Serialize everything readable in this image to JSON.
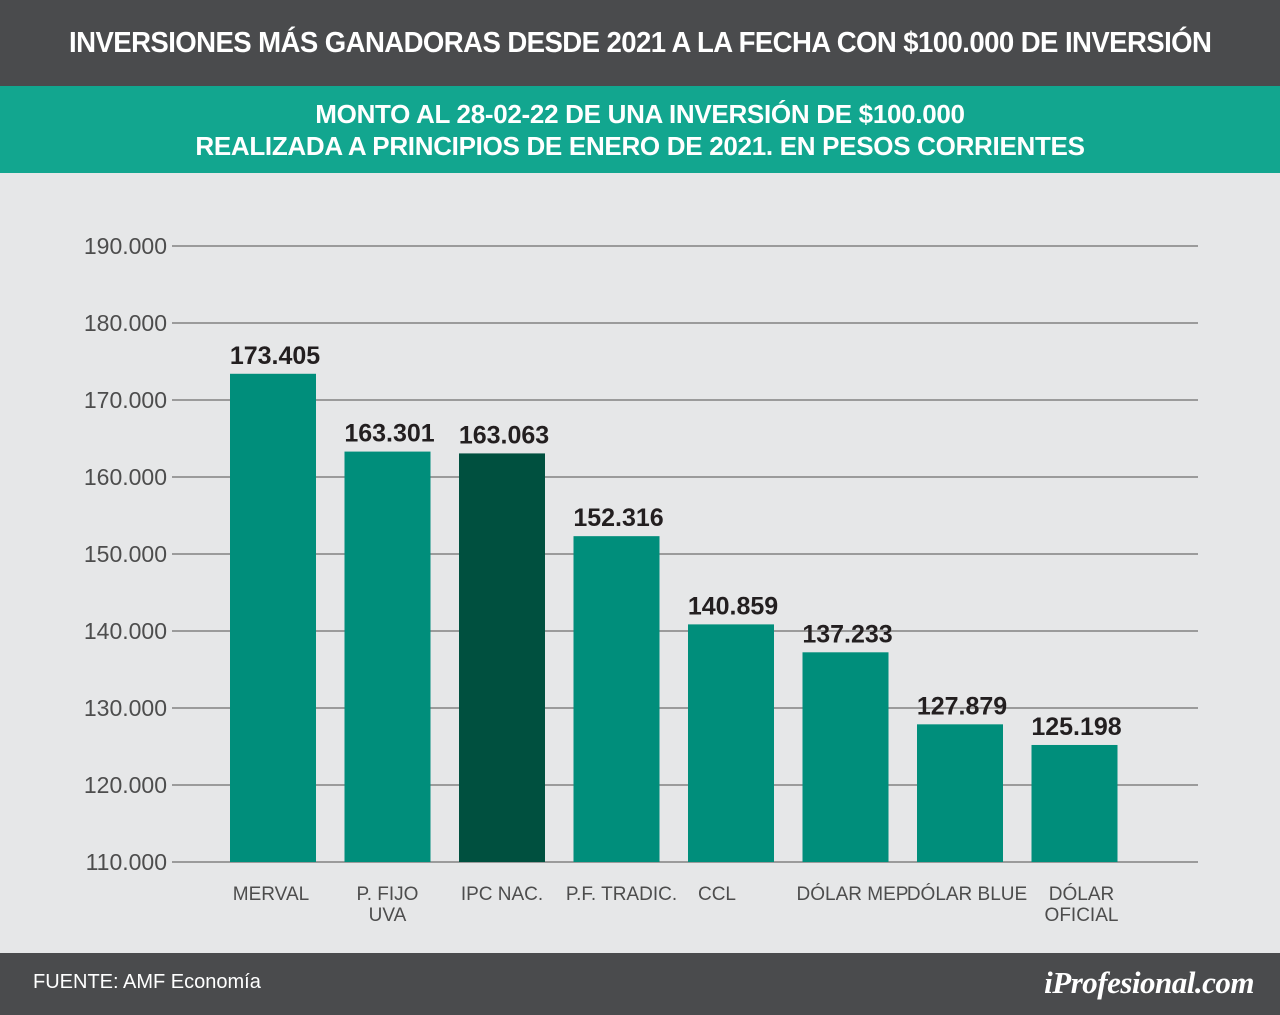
{
  "header": {
    "title": "INVERSIONES MÁS GANADORAS DESDE 2021 A LA FECHA CON $100.000 DE INVERSIÓN"
  },
  "subheader": {
    "line1": "MONTO AL 28-02-22 DE UNA INVERSIÓN DE $100.000",
    "line2": "REALIZADA A PRINCIPIOS DE ENERO DE 2021. EN PESOS CORRIENTES"
  },
  "footer": {
    "source": "FUENTE: AMF Economía",
    "brand": "iProfesional.com"
  },
  "colors": {
    "header_bg": "#4a4b4d",
    "subheader_bg": "#12a68f",
    "bar": "#008e7b",
    "bar_highlight": "#00503f",
    "gridline": "#9b9b9b",
    "background": "#e6e7e8"
  },
  "chart_data": {
    "type": "bar",
    "categories": [
      [
        "MERVAL"
      ],
      [
        "P. FIJO",
        "UVA"
      ],
      [
        "IPC NAC."
      ],
      [
        "P.F. TRADIC."
      ],
      [
        "CCL"
      ],
      [
        "DÓLAR MEP"
      ],
      [
        "DÓLAR BLUE"
      ],
      [
        "DÓLAR",
        "OFICIAL"
      ]
    ],
    "values": [
      173405,
      163301,
      163063,
      152316,
      140859,
      137233,
      127879,
      125198
    ],
    "value_labels": [
      "173.405",
      "163.301",
      "163.063",
      "152.316",
      "140.859",
      "137.233",
      "127.879",
      "125.198"
    ],
    "highlight_index": 2,
    "ylim": [
      110000,
      190000
    ],
    "yticks": [
      110000,
      120000,
      130000,
      140000,
      150000,
      160000,
      170000,
      180000,
      190000
    ],
    "ytick_labels": [
      "110.000",
      "120.000",
      "130.000",
      "140.000",
      "150.000",
      "160.000",
      "170.000",
      "180.000",
      "190.000"
    ],
    "grid": true,
    "legend": "none"
  }
}
